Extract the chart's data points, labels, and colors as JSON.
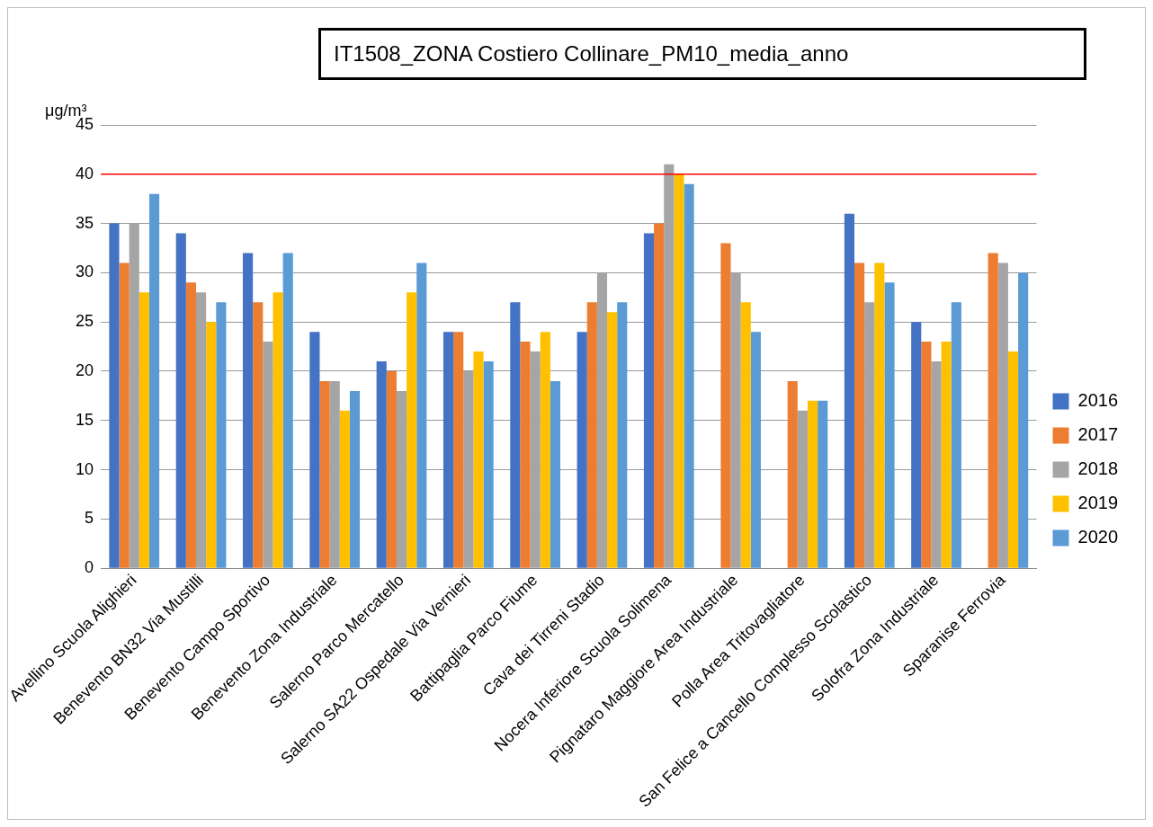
{
  "chart_data": {
    "type": "bar",
    "title": "IT1508_ZONA Costiero Collinare_PM10_media_anno",
    "ylabel": "μg/m³",
    "categories": [
      "Avellino Scuola Alighieri",
      "Benevento BN32 Via Mustilli",
      "Benevento Campo Sportivo",
      "Benevento Zona Industriale",
      "Salerno Parco Mercatello",
      "Salerno SA22 Ospedale Via Vernieri",
      "Battipaglia Parco Fiume",
      "Cava dei Tirreni Stadio",
      "Nocera Inferiore Scuola Solimena",
      "Pignataro Maggiore Area Industriale",
      "Polla Area Tritovagliatore",
      "San Felice a Cancello Complesso Scolastico",
      "Solofra Zona Industriale",
      "Sparanise Ferrovia"
    ],
    "series": [
      {
        "name": "2016",
        "color": "#4472c4",
        "values": [
          35,
          34,
          32,
          24,
          21,
          24,
          27,
          24,
          34,
          null,
          null,
          36,
          25,
          null
        ]
      },
      {
        "name": "2017",
        "color": "#ed7d31",
        "values": [
          31,
          29,
          27,
          19,
          20,
          24,
          23,
          27,
          35,
          33,
          19,
          31,
          23,
          32
        ]
      },
      {
        "name": "2018",
        "color": "#a5a5a5",
        "values": [
          35,
          28,
          23,
          19,
          18,
          20,
          22,
          30,
          41,
          30,
          16,
          27,
          21,
          31
        ]
      },
      {
        "name": "2019",
        "color": "#ffc000",
        "values": [
          28,
          25,
          28,
          16,
          28,
          22,
          24,
          26,
          40,
          27,
          17,
          31,
          23,
          22
        ]
      },
      {
        "name": "2020",
        "color": "#5b9bd5",
        "values": [
          38,
          27,
          32,
          18,
          31,
          21,
          19,
          27,
          39,
          24,
          17,
          29,
          27,
          30
        ]
      }
    ],
    "ylim": [
      0,
      45
    ],
    "yticks": [
      0,
      5,
      10,
      15,
      20,
      25,
      30,
      35,
      40,
      45
    ],
    "grid": "y",
    "legend": "right",
    "ref_lines": [
      {
        "axis": "y",
        "value": 40,
        "color": "#ff0000"
      }
    ]
  }
}
